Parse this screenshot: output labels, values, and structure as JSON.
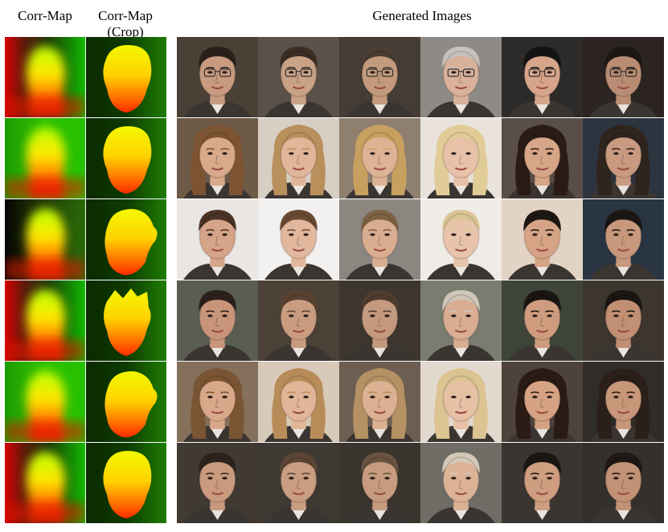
{
  "headers": {
    "corr_map": "Corr-Map",
    "corr_map_crop_line1": "Corr-Map",
    "corr_map_crop_line2": "(Crop)",
    "generated_images": "Generated Images"
  },
  "rows": [
    {
      "subject": "male-glasses",
      "corr_variant": "left-red",
      "crop_shape": "head-round",
      "faces": [
        {
          "skin": "#c89a80",
          "hair": "#2a211c",
          "bg": "#4a4036",
          "glasses": true,
          "hair_style": "short"
        },
        {
          "skin": "#c9a286",
          "hair": "#3a2e25",
          "bg": "#5b5149",
          "glasses": true,
          "hair_style": "short"
        },
        {
          "skin": "#c39a7c",
          "hair": "#4a3d33",
          "bg": "#453c35",
          "glasses": true,
          "hair_style": "short"
        },
        {
          "skin": "#d9b19a",
          "hair": "#c7c2bc",
          "bg": "#8e8a86",
          "glasses": true,
          "hair_style": "short"
        },
        {
          "skin": "#d6a58a",
          "hair": "#141414",
          "bg": "#2d2b2a",
          "glasses": true,
          "hair_style": "short"
        },
        {
          "skin": "#b98d73",
          "hair": "#1e1815",
          "bg": "#2b2421",
          "glasses": true,
          "hair_style": "short"
        }
      ]
    },
    {
      "subject": "female-long-hair",
      "corr_variant": "wide-green",
      "crop_shape": "head-round",
      "faces": [
        {
          "skin": "#d8a98b",
          "hair": "#7c5433",
          "bg": "#6d5a47",
          "glasses": false,
          "hair_style": "long"
        },
        {
          "skin": "#e0b69a",
          "hair": "#b98f5c",
          "bg": "#d7cec4",
          "glasses": false,
          "hair_style": "long"
        },
        {
          "skin": "#ddb396",
          "hair": "#c7a060",
          "bg": "#8e7f6f",
          "glasses": false,
          "hair_style": "long"
        },
        {
          "skin": "#e7c2a8",
          "hair": "#e1cc98",
          "bg": "#e9e3dc",
          "glasses": false,
          "hair_style": "long"
        },
        {
          "skin": "#d7a587",
          "hair": "#2a1c15",
          "bg": "#5a4f47",
          "glasses": false,
          "hair_style": "long"
        },
        {
          "skin": "#c99a80",
          "hair": "#2f241e",
          "bg": "#2c3440",
          "glasses": false,
          "hair_style": "long"
        }
      ]
    },
    {
      "subject": "female-tied-hair",
      "corr_variant": "dark-left",
      "crop_shape": "head-tilt",
      "faces": [
        {
          "skin": "#d6a489",
          "hair": "#4a3325",
          "bg": "#e9e6e3",
          "glasses": false,
          "hair_style": "tied"
        },
        {
          "skin": "#e1b89d",
          "hair": "#6a4a33",
          "bg": "#f3f1ef",
          "glasses": false,
          "hair_style": "tied"
        },
        {
          "skin": "#d9ad90",
          "hair": "#7e6346",
          "bg": "#8c8680",
          "glasses": false,
          "hair_style": "tied"
        },
        {
          "skin": "#e8c4aa",
          "hair": "#dcc595",
          "bg": "#efebe7",
          "glasses": false,
          "hair_style": "tied"
        },
        {
          "skin": "#d7a386",
          "hair": "#1e1713",
          "bg": "#e2d3c4",
          "glasses": false,
          "hair_style": "tied"
        },
        {
          "skin": "#c8987c",
          "hair": "#1c1714",
          "bg": "#293543",
          "glasses": false,
          "hair_style": "tied"
        }
      ]
    },
    {
      "subject": "male-short-hair",
      "corr_variant": "left-red",
      "crop_shape": "head-spiky",
      "faces": [
        {
          "skin": "#c9957a",
          "hair": "#2c201a",
          "bg": "#5a5e52",
          "glasses": false,
          "hair_style": "short"
        },
        {
          "skin": "#c99c80",
          "hair": "#5a4232",
          "bg": "#4b4137",
          "glasses": false,
          "hair_style": "short"
        },
        {
          "skin": "#c49a7e",
          "hair": "#4f3c2e",
          "bg": "#3d362f",
          "glasses": false,
          "hair_style": "short"
        },
        {
          "skin": "#d8ad92",
          "hair": "#cfc7b9",
          "bg": "#7a7c70",
          "glasses": false,
          "hair_style": "short"
        },
        {
          "skin": "#cf9b7e",
          "hair": "#1a1512",
          "bg": "#3e4438",
          "glasses": false,
          "hair_style": "short"
        },
        {
          "skin": "#c18f73",
          "hair": "#1c1613",
          "bg": "#3c362f",
          "glasses": false,
          "hair_style": "short"
        }
      ]
    },
    {
      "subject": "female-wavy-hair",
      "corr_variant": "wide-green",
      "crop_shape": "head-tilt",
      "faces": [
        {
          "skin": "#d9a88b",
          "hair": "#7a5534",
          "bg": "#84705b",
          "glasses": false,
          "hair_style": "long"
        },
        {
          "skin": "#e0b598",
          "hair": "#b88c58",
          "bg": "#d7cab8",
          "glasses": false,
          "hair_style": "long"
        },
        {
          "skin": "#dcb092",
          "hair": "#b59163",
          "bg": "#6c5e52",
          "glasses": false,
          "hair_style": "long"
        },
        {
          "skin": "#e6c1a5",
          "hair": "#dcc392",
          "bg": "#e2d9cf",
          "glasses": false,
          "hair_style": "long"
        },
        {
          "skin": "#d6a284",
          "hair": "#2a1b14",
          "bg": "#4e433b",
          "glasses": false,
          "hair_style": "long"
        },
        {
          "skin": "#c89679",
          "hair": "#2b1f19",
          "bg": "#2f2c2a",
          "glasses": false,
          "hair_style": "long"
        }
      ]
    },
    {
      "subject": "male-casual",
      "corr_variant": "left-red",
      "crop_shape": "head-round",
      "faces": [
        {
          "skin": "#c99a7e",
          "hair": "#2e231c",
          "bg": "#403a33",
          "glasses": false,
          "hair_style": "short"
        },
        {
          "skin": "#c99d82",
          "hair": "#5c4535",
          "bg": "#3f3933",
          "glasses": false,
          "hair_style": "short"
        },
        {
          "skin": "#c69b7f",
          "hair": "#6a5340",
          "bg": "#3a342e",
          "glasses": false,
          "hair_style": "short"
        },
        {
          "skin": "#dcb296",
          "hair": "#d3c9b7",
          "bg": "#6f6c66",
          "glasses": false,
          "hair_style": "short"
        },
        {
          "skin": "#cf9d80",
          "hair": "#1c1613",
          "bg": "#3a3530",
          "glasses": false,
          "hair_style": "short"
        },
        {
          "skin": "#c29276",
          "hair": "#1f1814",
          "bg": "#34302c",
          "glasses": false,
          "hair_style": "short"
        }
      ]
    }
  ]
}
